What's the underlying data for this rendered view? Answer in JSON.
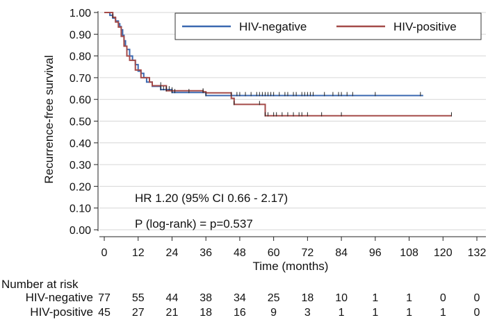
{
  "chart_data": {
    "type": "line",
    "subtype": "kaplan-meier",
    "xlabel": "Time (months)",
    "ylabel": "Recurrence-free survival",
    "xlim": [
      0,
      132
    ],
    "ylim": [
      0,
      1
    ],
    "x_ticks": [
      0,
      12,
      24,
      36,
      48,
      60,
      72,
      84,
      96,
      108,
      120,
      132
    ],
    "y_ticks": [
      0.0,
      0.1,
      0.2,
      0.3,
      0.4,
      0.5,
      0.6,
      0.7,
      0.8,
      0.9,
      1.0
    ],
    "y_tick_labels": [
      "0.00",
      "0.10",
      "0.20",
      "0.30",
      "0.40",
      "0.50",
      "0.60",
      "0.70",
      "0.80",
      "0.90",
      "1.00"
    ],
    "grid": "horizontal",
    "legend_position": "top-right",
    "series": [
      {
        "name": "HIV-negative",
        "color": "#3a68b0",
        "steps": [
          [
            0,
            1.0
          ],
          [
            2,
            0.987
          ],
          [
            3,
            0.974
          ],
          [
            4,
            0.961
          ],
          [
            5,
            0.948
          ],
          [
            5.5,
            0.935
          ],
          [
            6,
            0.92
          ],
          [
            6.5,
            0.895
          ],
          [
            7,
            0.87
          ],
          [
            7.5,
            0.845
          ],
          [
            8,
            0.83
          ],
          [
            9,
            0.8
          ],
          [
            10,
            0.78
          ],
          [
            11,
            0.76
          ],
          [
            12,
            0.73
          ],
          [
            13,
            0.72
          ],
          [
            14,
            0.7
          ],
          [
            15,
            0.68
          ],
          [
            17,
            0.66
          ],
          [
            20,
            0.645
          ],
          [
            24,
            0.632
          ],
          [
            36,
            0.618
          ],
          [
            113,
            0.618
          ]
        ],
        "censor_times": [
          20,
          21,
          22,
          23,
          24,
          25,
          30,
          35,
          36,
          45,
          47,
          48,
          50,
          52,
          54,
          55,
          56,
          57,
          58,
          59,
          60,
          62,
          64,
          65,
          67,
          68,
          70,
          71,
          72,
          73,
          74,
          78,
          81,
          83,
          84,
          86,
          88,
          96,
          112
        ]
      },
      {
        "name": "HIV-positive",
        "color": "#a44a48",
        "steps": [
          [
            0,
            1.0
          ],
          [
            3,
            0.978
          ],
          [
            4,
            0.956
          ],
          [
            5,
            0.933
          ],
          [
            6,
            0.89
          ],
          [
            7,
            0.845
          ],
          [
            8,
            0.8
          ],
          [
            9,
            0.78
          ],
          [
            11,
            0.735
          ],
          [
            13,
            0.7
          ],
          [
            14,
            0.7
          ],
          [
            16,
            0.68
          ],
          [
            17,
            0.663
          ],
          [
            20,
            0.663
          ],
          [
            22,
            0.64
          ],
          [
            24,
            0.64
          ],
          [
            34,
            0.64
          ],
          [
            35,
            0.635
          ],
          [
            36,
            0.63
          ],
          [
            45,
            0.605
          ],
          [
            46,
            0.577
          ],
          [
            56,
            0.577
          ],
          [
            57,
            0.525
          ],
          [
            123,
            0.525
          ]
        ],
        "censor_times": [
          3,
          20,
          22,
          24,
          35,
          46,
          55,
          57,
          58,
          60,
          61,
          63,
          65,
          67,
          69,
          70,
          72,
          77,
          84,
          123
        ]
      }
    ],
    "annotations": {
      "hr": "HR 1.20 (95% CI 0.66 - 2.17)",
      "p": "P (log-rank) = p=0.537"
    },
    "risk_table": {
      "title": "Number at risk",
      "times": [
        0,
        12,
        24,
        36,
        48,
        60,
        72,
        84,
        96,
        108,
        120,
        132
      ],
      "rows": [
        {
          "label": "HIV-negative",
          "values": [
            "77",
            "55",
            "44",
            "38",
            "34",
            "25",
            "18",
            "10",
            "1",
            "1",
            "0",
            "0"
          ]
        },
        {
          "label": "HIV-positive",
          "values": [
            "45",
            "27",
            "21",
            "18",
            "16",
            "9",
            "3",
            "1",
            "1",
            "1",
            "1",
            "0"
          ]
        }
      ]
    }
  }
}
